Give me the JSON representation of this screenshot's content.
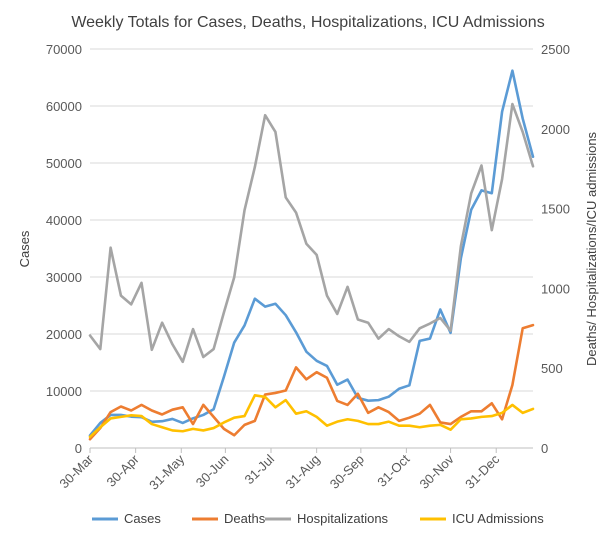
{
  "chart_data": {
    "type": "line",
    "title": "Weekly Totals for Cases, Deaths, Hospitalizations, ICU Admissions",
    "ylabel": "Cases",
    "y2label": "Deaths/ Hospitalizations/ICU admissions",
    "ylim": [
      0,
      70000
    ],
    "y2lim": [
      0,
      2500
    ],
    "yticks": [
      "0",
      "10000",
      "20000",
      "30000",
      "40000",
      "50000",
      "60000",
      "70000"
    ],
    "y2ticks": [
      "0",
      "500",
      "1000",
      "1500",
      "2000",
      "2500"
    ],
    "xticks": [
      "30-Mar",
      "30-Apr",
      "31-May",
      "30-Jun",
      "31-Jul",
      "31-Aug",
      "30-Sep",
      "31-Oct",
      "30-Nov",
      "31-Dec"
    ],
    "x_tick_weeks": [
      0,
      4.43,
      8.86,
      13.14,
      17.57,
      22,
      26.29,
      30.71,
      35,
      39.43
    ],
    "grid": true,
    "legend_position": "bottom",
    "series": [
      {
        "name": "Cases",
        "axis": "left",
        "color": "#5b9bd5",
        "values": [
          2200,
          4400,
          5800,
          5800,
          5500,
          5400,
          4600,
          4700,
          5100,
          4400,
          5200,
          5800,
          6800,
          12500,
          18500,
          21500,
          26200,
          24800,
          25300,
          23300,
          20300,
          16900,
          15300,
          14400,
          11100,
          12000,
          8800,
          8300,
          8400,
          9000,
          10400,
          11000,
          18800,
          19200,
          24300,
          20200,
          33300,
          41800,
          45200,
          44700,
          59000,
          66200,
          57800,
          51100
        ]
      },
      {
        "name": "Deaths",
        "axis": "right",
        "color": "#ed7d31",
        "values": [
          55,
          125,
          225,
          260,
          235,
          270,
          235,
          210,
          240,
          255,
          150,
          270,
          195,
          120,
          80,
          145,
          170,
          335,
          345,
          360,
          505,
          430,
          475,
          440,
          295,
          270,
          340,
          220,
          255,
          225,
          170,
          190,
          215,
          270,
          160,
          150,
          195,
          230,
          230,
          280,
          180,
          395,
          750,
          770
        ]
      },
      {
        "name": "Hospitalizations",
        "axis": "right",
        "color": "#a5a5a5",
        "values": [
          705,
          620,
          1255,
          955,
          900,
          1035,
          615,
          785,
          650,
          540,
          745,
          570,
          620,
          850,
          1070,
          1490,
          1760,
          2085,
          1980,
          1570,
          1475,
          1280,
          1210,
          955,
          840,
          1010,
          805,
          785,
          685,
          745,
          700,
          665,
          750,
          780,
          815,
          735,
          1265,
          1595,
          1770,
          1365,
          1685,
          2155,
          1980,
          1765
        ]
      },
      {
        "name": "ICU Admissions",
        "axis": "right",
        "color": "#ffc000",
        "values": [
          70,
          130,
          185,
          195,
          205,
          200,
          150,
          130,
          110,
          105,
          120,
          110,
          125,
          160,
          190,
          200,
          330,
          320,
          255,
          300,
          215,
          230,
          195,
          140,
          165,
          180,
          170,
          150,
          150,
          165,
          140,
          140,
          130,
          140,
          145,
          115,
          180,
          185,
          195,
          200,
          220,
          270,
          220,
          245
        ]
      }
    ]
  }
}
